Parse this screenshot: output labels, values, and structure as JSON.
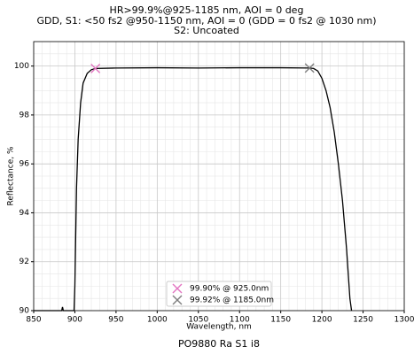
{
  "chart_data": {
    "type": "line",
    "title": "HR>99.9%@925-1185 nm, AOI = 0 deg",
    "subtitle": "GDD, S1: <50 fs2 @950-1150 nm, AOI = 0 (GDD = 0 fs2 @ 1030 nm)",
    "subtitle2": "S2: Uncoated",
    "footer": "PO9880 Ra S1 i8",
    "xlabel": "Wavelength, nm",
    "ylabel": "Reflectance, %",
    "xlim": [
      850,
      1300
    ],
    "ylim": [
      90,
      101
    ],
    "xticks": [
      850,
      900,
      950,
      1000,
      1050,
      1100,
      1150,
      1200,
      1250,
      1300
    ],
    "yticks": [
      90,
      92,
      94,
      96,
      98,
      100
    ],
    "grid": true,
    "minor_grid": true,
    "legend": "lower center",
    "line": {
      "color": "#000000",
      "x": [
        850,
        884,
        885,
        886,
        899,
        900,
        901,
        902,
        904,
        907,
        910,
        915,
        920,
        925,
        950,
        1000,
        1050,
        1100,
        1150,
        1185,
        1190,
        1195,
        1200,
        1205,
        1210,
        1215,
        1220,
        1225,
        1230,
        1234,
        1236
      ],
      "values": [
        90,
        90,
        90.15,
        90,
        90,
        91,
        93,
        95,
        97,
        98.5,
        99.3,
        99.7,
        99.85,
        99.9,
        99.92,
        99.93,
        99.92,
        99.93,
        99.93,
        99.92,
        99.9,
        99.8,
        99.5,
        99.0,
        98.3,
        97.3,
        96.0,
        94.5,
        92.5,
        90.5,
        90
      ]
    },
    "series": [
      {
        "name": "99.90% @ 925.0nm",
        "color": "#e377c2",
        "x": [
          925
        ],
        "values": [
          99.9
        ]
      },
      {
        "name": "99.92% @ 1185.0nm",
        "color": "#7f7f7f",
        "x": [
          1185
        ],
        "values": [
          99.92
        ]
      }
    ]
  }
}
